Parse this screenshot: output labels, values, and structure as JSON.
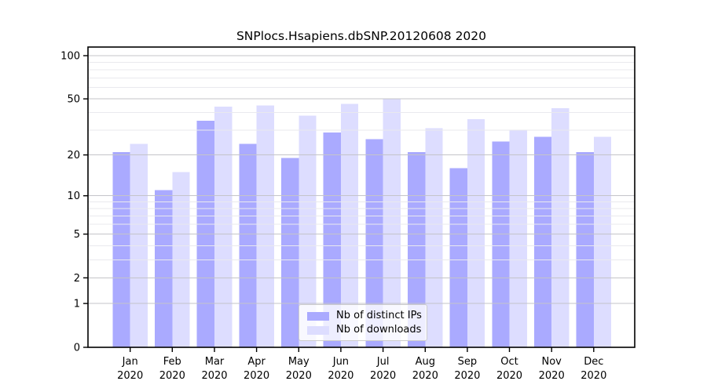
{
  "title": "SNPlocs.Hsapiens.dbSNP.20120608 2020",
  "chart_data": {
    "type": "bar",
    "title": "SNPlocs.Hsapiens.dbSNP.20120608 2020",
    "scale": "log1p",
    "categories": [
      "Jan",
      "Feb",
      "Mar",
      "Apr",
      "May",
      "Jun",
      "Jul",
      "Aug",
      "Sep",
      "Oct",
      "Nov",
      "Dec"
    ],
    "year": "2020",
    "series": [
      {
        "name": "Nb of distinct IPs",
        "color": "#aaaaff",
        "values": [
          21,
          11,
          35,
          24,
          19,
          29,
          26,
          21,
          16,
          25,
          27,
          21
        ]
      },
      {
        "name": "Nb of downloads",
        "color": "#ddddff",
        "values": [
          24,
          15,
          44,
          45,
          38,
          46,
          50,
          31,
          36,
          30,
          43,
          27
        ]
      }
    ],
    "y_ticks": [
      100,
      50,
      20,
      10,
      5,
      2,
      1,
      0
    ],
    "ylim": [
      0,
      115
    ],
    "grid": true,
    "legend_position": "inside-bottom-center"
  }
}
